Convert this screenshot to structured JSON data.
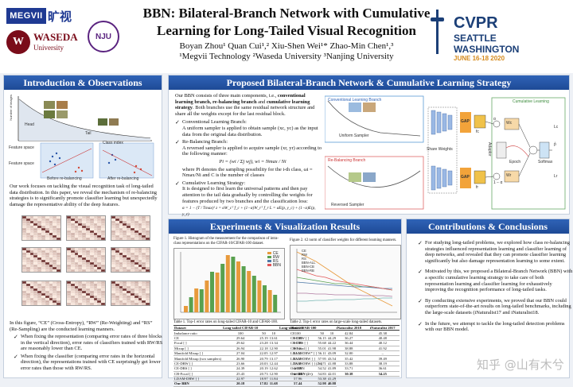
{
  "header": {
    "title_line1": "BBN: Bilateral-Branch Network with Cumulative",
    "title_line2": "Learning for Long-Tailed Visual Recognition",
    "authors": "Boyan Zhou¹   Quan Cui¹,²   Xiu-Shen Wei¹*   Zhao-Min Chen¹,³",
    "affiliations": "¹Megvii Technology   ²Waseda University   ³Nanjing University",
    "logo_megvii": "MEGVII",
    "logo_megvii_cn": "旷视",
    "logo_waseda": "WASEDA",
    "logo_waseda_sub": "University",
    "logo_waseda_mark": "W",
    "logo_nju": "NJU",
    "cvpr_main": "CVPR",
    "cvpr_city1": "SEATTLE",
    "cvpr_city2": "WASHINGTON",
    "cvpr_date": "JUNE 16-18 2020"
  },
  "intro": {
    "heading": "Introduction & Observations",
    "fig_labels": {
      "ylabel": "Number of images",
      "head": "Head",
      "tail": "Tail",
      "xlabel": "Class index",
      "fs1": "Feature space",
      "fs2": "Feature space",
      "before": "Before re-balancing",
      "after": "After re-balancing"
    },
    "paragraph": "Our work focuses on tackling the visual recognition task of long-tailed data distribution. In this paper, we reveal the mechanism of re-balancing strategies is to significantly promote classifier learning but unexpectedly damage the representative ability of the deep features.",
    "caption": "In this figure, “CE” (Cross-Entropy), “RW” (Re-Weighting) and “RS” (Re-Sampling) are the conducted learning manners.",
    "bullets": [
      "When fixing the representation (comparing error rates of three blocks in the vertical direction), error rates of classifiers trained with RW/RS are reasonably lower than CE.",
      "When fixing the classifier (comparing error rates in the horizontal direction), the representations trained with CE surprisingly get lower error rates than those with RW/RS."
    ]
  },
  "method": {
    "heading": "Proposed Bilateral-Branch Network & Cumulative Learning Strategy",
    "intro_pre": "Our BBN consists of three main components, i.e., ",
    "intro_bold": "conventional learning branch, re-balancing branch",
    "intro_mid": " and ",
    "intro_bold2": "cumulative learning strategy",
    "intro_post": ". Both branches use the same residual network structure and share all the weights except for the last residual block.",
    "b1_title": "Conventional Learning Branch:",
    "b1_text": "A uniform sampler is applied to obtain sample (xc, yc) as the input data from the original data distribution.",
    "b2_title": "Re-Balancing Branch:",
    "b2_text": "A reversed sampler is applied to acquire sample (xr, yr) according to the following manner:",
    "b2_formula": "Pi = (wi / Σj wj),  wi = Nmax / Ni",
    "b2_where": "where Pi denotes the sampling possibility for the i-th class, ωi = Nmax/Ni and C is the number of classes",
    "b3_title": "Cumulative Learning Strategy:",
    "b3_text": "It is designed to first learn the universal patterns and then pay attention to the tail data gradually by controlling the weights for features produced by two branches and the classification loss:",
    "b3_formula": "α = 1 − (T / Tmax)²   z = αW_cᵀ f_c + (1−α)W_rᵀ f_r   L = αE(p, y_c) + (1−α)E(p, y_r)",
    "diagram": {
      "branch1": "Conventional Learning Branch",
      "branch2": "Re-Balancing Branch",
      "sampler1": "Uniform Sampler",
      "sampler2": "Reversed Sampler",
      "shared": "Share Weights",
      "gap": "GAP",
      "cumulative": "Cumulative Learning",
      "adaptor": "Adaptor",
      "softmax": "Softmax",
      "epoch": "Epoch",
      "fc": "fc",
      "fr": "fr",
      "wc": "Wc",
      "wr": "Wr",
      "alpha": "α",
      "one_minus_alpha": "1 − α",
      "p": "p̂",
      "lc": "Lc",
      "lr": "Lr"
    }
  },
  "experiments": {
    "heading": "Experiments & Visualization Results",
    "fig1_caption": "Figure 1. Histogram of the measurement for the comparison of intra-class representations on the CIFAR-10/CIFAR-100 dataset.",
    "fig2_caption": "Figure 2. ℓ2 norm of classifier weights for different learning manners.",
    "table1_caption": "Table 1. Top-1 error rates on long-tailed CIFAR-10 and CIFAR-100.",
    "table2_caption": "Table 2. Top-1 error rates on large-scale long-tailed datasets.",
    "table1": {
      "headers": [
        "Dataset",
        "Long-tailed CIFAR-10",
        "",
        "",
        "Long-tailed CIFAR-100",
        "",
        ""
      ],
      "rows": [
        [
          "Imbalance ratio",
          "100",
          "50",
          "10",
          "100",
          "50",
          "10"
        ],
        [
          "CE",
          "29.64",
          "25.19",
          "13.61",
          "61.68",
          "56.15",
          "44.29"
        ],
        [
          "Focal [ ]",
          "29.62",
          "23.28",
          "13.34",
          "61.59",
          "55.68",
          "44.22"
        ],
        [
          "Mixup [ ]",
          "26.94",
          "22.18",
          "12.90",
          "60.46",
          "55.01",
          "41.98"
        ],
        [
          "Manifold Mixup [ ]",
          "27.04",
          "22.05",
          "12.97",
          "61.12",
          "56.11",
          "43.09"
        ],
        [
          "Manifold Mixup (two samplers)",
          "26.90",
          "20.79",
          "13.17",
          "63.19",
          "57.95",
          "43.54"
        ],
        [
          "CE-DRW [ ]",
          "23.66",
          "20.03",
          "12.44",
          "58.49",
          "54.71",
          "41.88"
        ],
        [
          "CE-DRS [ ]",
          "24.39",
          "20.19",
          "12.62",
          "58.39",
          "54.52",
          "41.89"
        ],
        [
          "CB-Focal [ ]",
          "25.43",
          "20.73",
          "12.90",
          "60.40",
          "54.83",
          "42.01"
        ],
        [
          "LDAM-DRW [ ]",
          "22.97",
          "18.97",
          "11.84",
          "57.96",
          "53.38",
          "41.29"
        ],
        [
          "Our BBN",
          "20.18",
          "17.82",
          "11.68",
          "57.44",
          "52.98",
          "40.88"
        ]
      ]
    },
    "table2": {
      "headers": [
        "Datasets",
        "iNaturalist 2018",
        "iNaturalist 2017"
      ],
      "rows": [
        [
          "CE",
          "42.84",
          "45.38"
        ],
        [
          "CE-DRW [ ]",
          "36.27",
          "40.48"
        ],
        [
          "CE-DRS [ ]",
          "36.44",
          "40.12"
        ],
        [
          "CB-Focal [ ]",
          "38.88",
          "41.92"
        ],
        [
          "LDAM-DRW* [ ]",
          "32.00",
          "–"
        ],
        [
          "LDAM-DRW [ ]",
          "35.42",
          "39.49"
        ],
        [
          "LDAM-DRW [ ] (2×)",
          "33.88",
          "38.19"
        ],
        [
          "Our BBN",
          "33.71",
          "36.61"
        ],
        [
          "Our BBN (2×)",
          "30.38",
          "34.25"
        ]
      ]
    },
    "fig1_legend": [
      "CE",
      "RW",
      "RS",
      "BBN"
    ],
    "fig2_legend": [
      "CE",
      "RW",
      "RS",
      "BBN-ALL",
      "BBN-CB",
      "BBN-RB"
    ]
  },
  "conclusions": {
    "heading": "Contributions & Conclusions",
    "items": [
      "For studying long-tailed problems, we explored how class re-balancing strategies influenced representation learning and classifier learning of deep networks, and revealed that they can promote classifier learning significantly but also damage representation learning to some extent.",
      "Motivated by this, we proposed a Bilateral-Branch Network (BBN) with a specific cumulative learning strategy to take care of both representation learning and classifier learning for exhaustively improving the recognition performance of long-tailed tasks.",
      "By conducting extensive experiments, we proved that our BBN could outperform state-of-the-art results on long-tailed benchmarks, including the large-scale datasets (iNaturalist17 and iNaturalist18.",
      "In the future, we attempt to tackle the long-tailed detection problems with our BBN model."
    ]
  },
  "watermark": "知乎 @山有木兮",
  "colors": {
    "accent": "#2f63b7",
    "heat_high": "#7a0d0d",
    "heat_low": "#fbe9dd",
    "bar_orange": "#e89a3c",
    "bar_green": "#59a14f"
  }
}
